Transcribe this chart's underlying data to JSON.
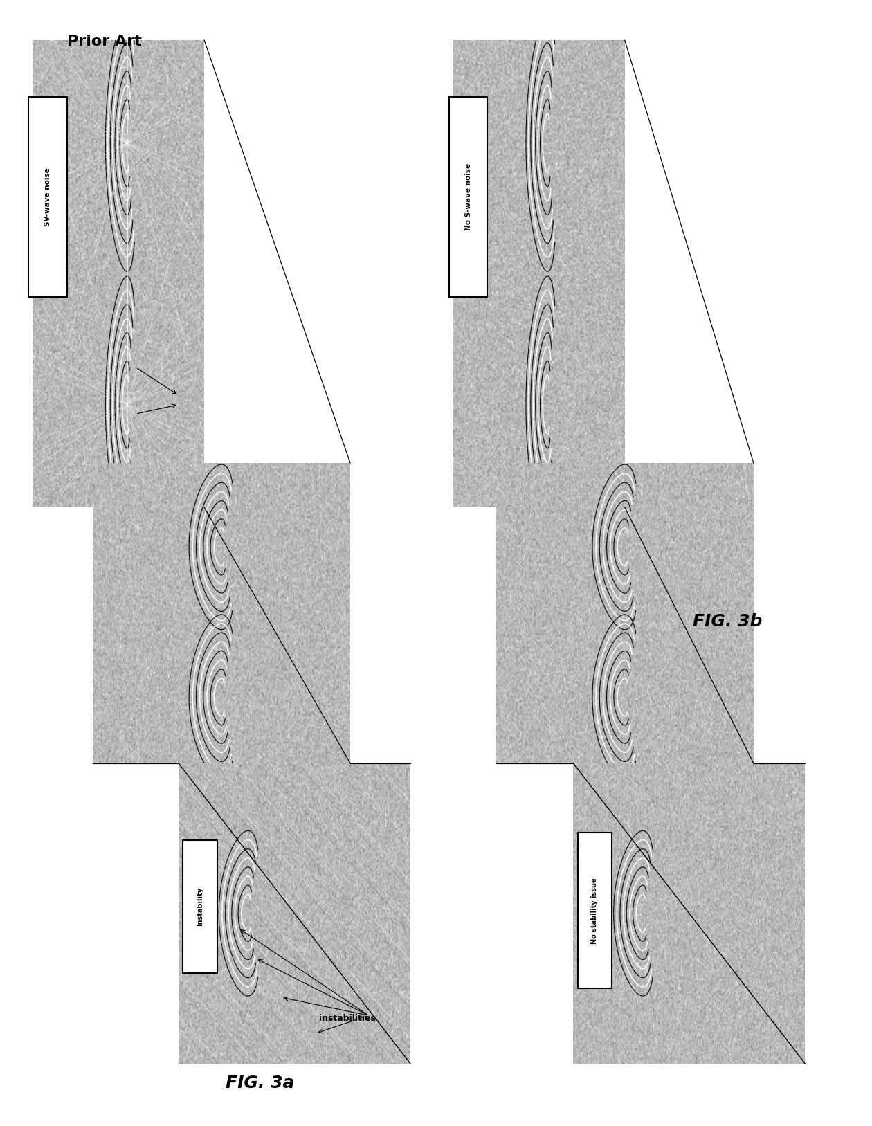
{
  "fig_width": 12.4,
  "fig_height": 16.07,
  "bg_color": "#ffffff",
  "panel_a_label": "FIG. 3a",
  "panel_b_label": "FIG. 3b",
  "prior_art_label": "Prior Art",
  "label_sv_wave": "SV-wave noise",
  "label_no_s_wave": "No S-wave noise",
  "label_instability": "Instability",
  "label_instabilities": "instabilities",
  "label_no_stability": "No stability issue",
  "noise_base": 0.72,
  "noise_std": 0.07
}
